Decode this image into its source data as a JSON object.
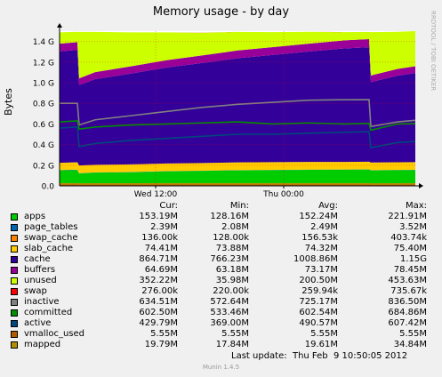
{
  "chart_data": {
    "type": "area",
    "title": "Memory usage - by day",
    "ylabel": "Bytes",
    "xlabel": "",
    "credit": "RRDTOOL / TOBI OETIKER",
    "ylim": [
      0,
      1.5
    ],
    "yticks": [
      {
        "v": 0.0,
        "label": "0.0"
      },
      {
        "v": 0.2,
        "label": "0.2 G"
      },
      {
        "v": 0.4,
        "label": "0.4 G"
      },
      {
        "v": 0.6,
        "label": "0.6 G"
      },
      {
        "v": 0.8,
        "label": "0.8 G"
      },
      {
        "v": 1.0,
        "label": "1.0 G"
      },
      {
        "v": 1.2,
        "label": "1.2 G"
      },
      {
        "v": 1.4,
        "label": "1.4 G"
      }
    ],
    "xticks": [
      {
        "t": 0.27,
        "label": "Wed 12:00"
      },
      {
        "t": 0.63,
        "label": "Thu 00:00"
      }
    ],
    "grid": true,
    "x": [
      0,
      0.05,
      0.055,
      0.1,
      0.2,
      0.3,
      0.4,
      0.5,
      0.6,
      0.7,
      0.8,
      0.87,
      0.875,
      0.95,
      1.0
    ],
    "stacked_series": [
      {
        "name": "apps",
        "color": "#00cc00",
        "values": [
          0.15,
          0.153,
          0.12,
          0.128,
          0.132,
          0.14,
          0.145,
          0.15,
          0.152,
          0.155,
          0.156,
          0.158,
          0.15,
          0.152,
          0.153
        ]
      },
      {
        "name": "page_tables",
        "color": "#0066b3",
        "values": [
          0.003,
          0.003,
          0.002,
          0.002,
          0.002,
          0.002,
          0.002,
          0.002,
          0.002,
          0.002,
          0.002,
          0.002,
          0.002,
          0.002,
          0.002
        ]
      },
      {
        "name": "swap_cache",
        "color": "#ff8000",
        "values": [
          0.0003,
          0.0003,
          0.0002,
          0.0002,
          0.0002,
          0.0002,
          0.0002,
          0.0002,
          0.0002,
          0.0002,
          0.0002,
          0.0002,
          0.0001,
          0.0001,
          0.0001
        ]
      },
      {
        "name": "slab_cache",
        "color": "#ffcc00",
        "values": [
          0.07,
          0.072,
          0.075,
          0.074,
          0.074,
          0.074,
          0.074,
          0.075,
          0.075,
          0.074,
          0.074,
          0.074,
          0.074,
          0.074,
          0.074
        ]
      },
      {
        "name": "cache",
        "color": "#330099",
        "values": [
          1.08,
          1.09,
          0.78,
          0.83,
          0.88,
          0.93,
          0.97,
          1.01,
          1.04,
          1.07,
          1.1,
          1.11,
          0.78,
          0.84,
          0.865
        ]
      },
      {
        "name": "buffers",
        "color": "#990099",
        "values": [
          0.075,
          0.075,
          0.065,
          0.068,
          0.07,
          0.072,
          0.073,
          0.075,
          0.076,
          0.077,
          0.078,
          0.078,
          0.064,
          0.065,
          0.065
        ]
      },
      {
        "name": "unused",
        "color": "#ccff00",
        "values": [
          0.11,
          0.1,
          0.45,
          0.39,
          0.33,
          0.27,
          0.22,
          0.18,
          0.145,
          0.115,
          0.08,
          0.07,
          0.42,
          0.36,
          0.352
        ]
      },
      {
        "name": "swap",
        "color": "#ff0000",
        "values": [
          0.0003,
          0.0003,
          0.0003,
          0.0003,
          0.0003,
          0.0003,
          0.0003,
          0.0003,
          0.0003,
          0.0003,
          0.0003,
          0.0003,
          0.0003,
          0.0003,
          0.0003
        ]
      }
    ],
    "line_series": [
      {
        "name": "inactive",
        "color": "#808080",
        "values": [
          0.8,
          0.8,
          0.59,
          0.64,
          0.68,
          0.72,
          0.76,
          0.79,
          0.81,
          0.83,
          0.835,
          0.836,
          0.575,
          0.62,
          0.635
        ]
      },
      {
        "name": "committed",
        "color": "#008f00",
        "values": [
          0.62,
          0.63,
          0.55,
          0.57,
          0.59,
          0.6,
          0.61,
          0.62,
          0.6,
          0.61,
          0.6,
          0.605,
          0.54,
          0.6,
          0.603
        ]
      },
      {
        "name": "active",
        "color": "#00487d",
        "values": [
          0.56,
          0.57,
          0.38,
          0.41,
          0.44,
          0.46,
          0.48,
          0.5,
          0.5,
          0.51,
          0.52,
          0.525,
          0.37,
          0.42,
          0.43
        ]
      },
      {
        "name": "vmalloc_used",
        "color": "#b35a00",
        "values": [
          0.0055,
          0.0055,
          0.0055,
          0.0055,
          0.0055,
          0.0055,
          0.0055,
          0.0055,
          0.0055,
          0.0055,
          0.0055,
          0.0055,
          0.0055,
          0.0055,
          0.0055
        ]
      },
      {
        "name": "mapped",
        "color": "#b38f00",
        "values": [
          0.02,
          0.02,
          0.018,
          0.019,
          0.019,
          0.02,
          0.02,
          0.02,
          0.02,
          0.02,
          0.02,
          0.02,
          0.018,
          0.019,
          0.02
        ]
      }
    ]
  },
  "legend": {
    "headers": {
      "cur": "Cur:",
      "min": "Min:",
      "avg": "Avg:",
      "max": "Max:"
    },
    "rows": [
      {
        "name": "apps",
        "color": "#00cc00",
        "cur": "153.19M",
        "min": "128.16M",
        "avg": "152.24M",
        "max": "221.91M"
      },
      {
        "name": "page_tables",
        "color": "#0066b3",
        "cur": "2.39M",
        "min": "2.08M",
        "avg": "2.49M",
        "max": "3.52M"
      },
      {
        "name": "swap_cache",
        "color": "#ff8000",
        "cur": "136.00k",
        "min": "128.00k",
        "avg": "156.53k",
        "max": "403.74k"
      },
      {
        "name": "slab_cache",
        "color": "#ffcc00",
        "cur": "74.41M",
        "min": "73.88M",
        "avg": "74.32M",
        "max": "75.40M"
      },
      {
        "name": "cache",
        "color": "#330099",
        "cur": "864.71M",
        "min": "766.23M",
        "avg": "1008.86M",
        "max": "1.15G"
      },
      {
        "name": "buffers",
        "color": "#990099",
        "cur": "64.69M",
        "min": "63.18M",
        "avg": "73.17M",
        "max": "78.45M"
      },
      {
        "name": "unused",
        "color": "#ccff00",
        "cur": "352.22M",
        "min": "35.98M",
        "avg": "200.50M",
        "max": "453.63M"
      },
      {
        "name": "swap",
        "color": "#ff0000",
        "cur": "276.00k",
        "min": "220.00k",
        "avg": "259.94k",
        "max": "735.67k"
      },
      {
        "name": "inactive",
        "color": "#808080",
        "cur": "634.51M",
        "min": "572.64M",
        "avg": "725.17M",
        "max": "836.50M"
      },
      {
        "name": "committed",
        "color": "#008f00",
        "cur": "602.50M",
        "min": "533.46M",
        "avg": "602.54M",
        "max": "684.86M"
      },
      {
        "name": "active",
        "color": "#00487d",
        "cur": "429.79M",
        "min": "369.00M",
        "avg": "490.57M",
        "max": "607.42M"
      },
      {
        "name": "vmalloc_used",
        "color": "#b35a00",
        "cur": "5.55M",
        "min": "5.55M",
        "avg": "5.55M",
        "max": "5.55M"
      },
      {
        "name": "mapped",
        "color": "#b38f00",
        "cur": "19.79M",
        "min": "17.84M",
        "avg": "19.61M",
        "max": "34.84M"
      }
    ]
  },
  "footer": {
    "last_update": "Last update:  Thu Feb  9 10:50:05 2012",
    "munin": "Munin 1.4.5"
  }
}
